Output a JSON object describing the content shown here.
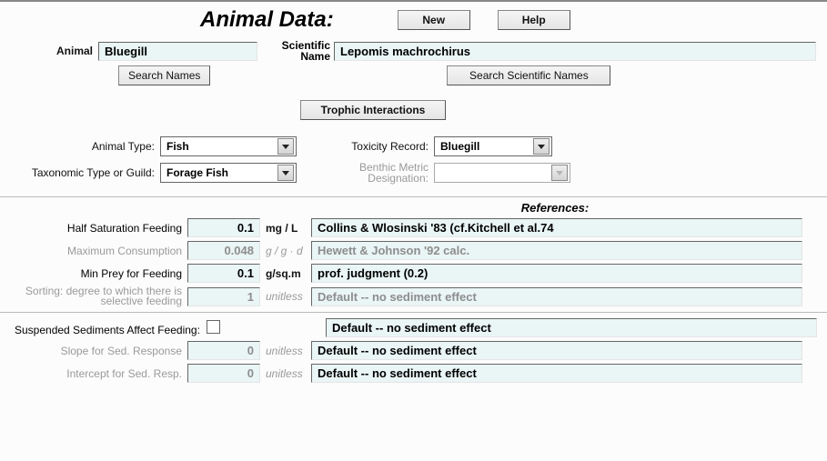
{
  "header": {
    "title": "Animal Data:",
    "new_label": "New",
    "help_label": "Help"
  },
  "identity": {
    "animal_label": "Animal",
    "animal_value": "Bluegill",
    "search_names_label": "Search Names",
    "sciname_label_line1": "Scientific",
    "sciname_label_line2": "Name",
    "sciname_value": "Lepomis machrochirus",
    "search_sci_label": "Search Scientific Names",
    "trophic_btn": "Trophic Interactions"
  },
  "classification": {
    "animal_type_label": "Animal Type:",
    "animal_type_value": "Fish",
    "tax_type_label": "Taxonomic Type or Guild:",
    "tax_type_value": "Forage Fish",
    "tox_record_label": "Toxicity Record:",
    "tox_record_value": "Bluegill",
    "benthic_label_line1": "Benthic Metric",
    "benthic_label_line2": "Designation:",
    "benthic_value": ""
  },
  "references_header": "References:",
  "params": [
    {
      "label": "Half Saturation Feeding",
      "value": "0.1",
      "unit": "mg / L",
      "ref": "Collins & Wlosinski '83 (cf.Kitchell et al.74",
      "dim": false,
      "unit_dim": false
    },
    {
      "label": "Maximum Consumption",
      "value": "0.048",
      "unit": "g / g · d",
      "ref": "Hewett & Johnson '92 calc.",
      "dim": true,
      "unit_dim": true
    },
    {
      "label": "Min Prey for Feeding",
      "value": "0.1",
      "unit": "g/sq.m",
      "ref": "prof. judgment (0.2)",
      "dim": false,
      "unit_dim": false
    },
    {
      "label": "Sorting: degree to which there is selective feeding",
      "value": "1",
      "unit": "unitless",
      "ref": "Default -- no sediment effect",
      "dim": true,
      "unit_dim": true
    }
  ],
  "sediment": {
    "affect_label": "Suspended Sediments Affect Feeding:",
    "affect_checked": false,
    "affect_ref": "Default -- no sediment effect",
    "rows": [
      {
        "label": "Slope for Sed. Response",
        "value": "0",
        "unit": "unitless",
        "ref": "Default -- no sediment effect"
      },
      {
        "label": "Intercept for Sed. Resp.",
        "value": "0",
        "unit": "unitless",
        "ref": "Default -- no sediment effect"
      }
    ]
  },
  "colors": {
    "input_bg": "#eaf5f5",
    "dim_text": "#9a9a9a",
    "page_bg": "#fcfcfc"
  }
}
